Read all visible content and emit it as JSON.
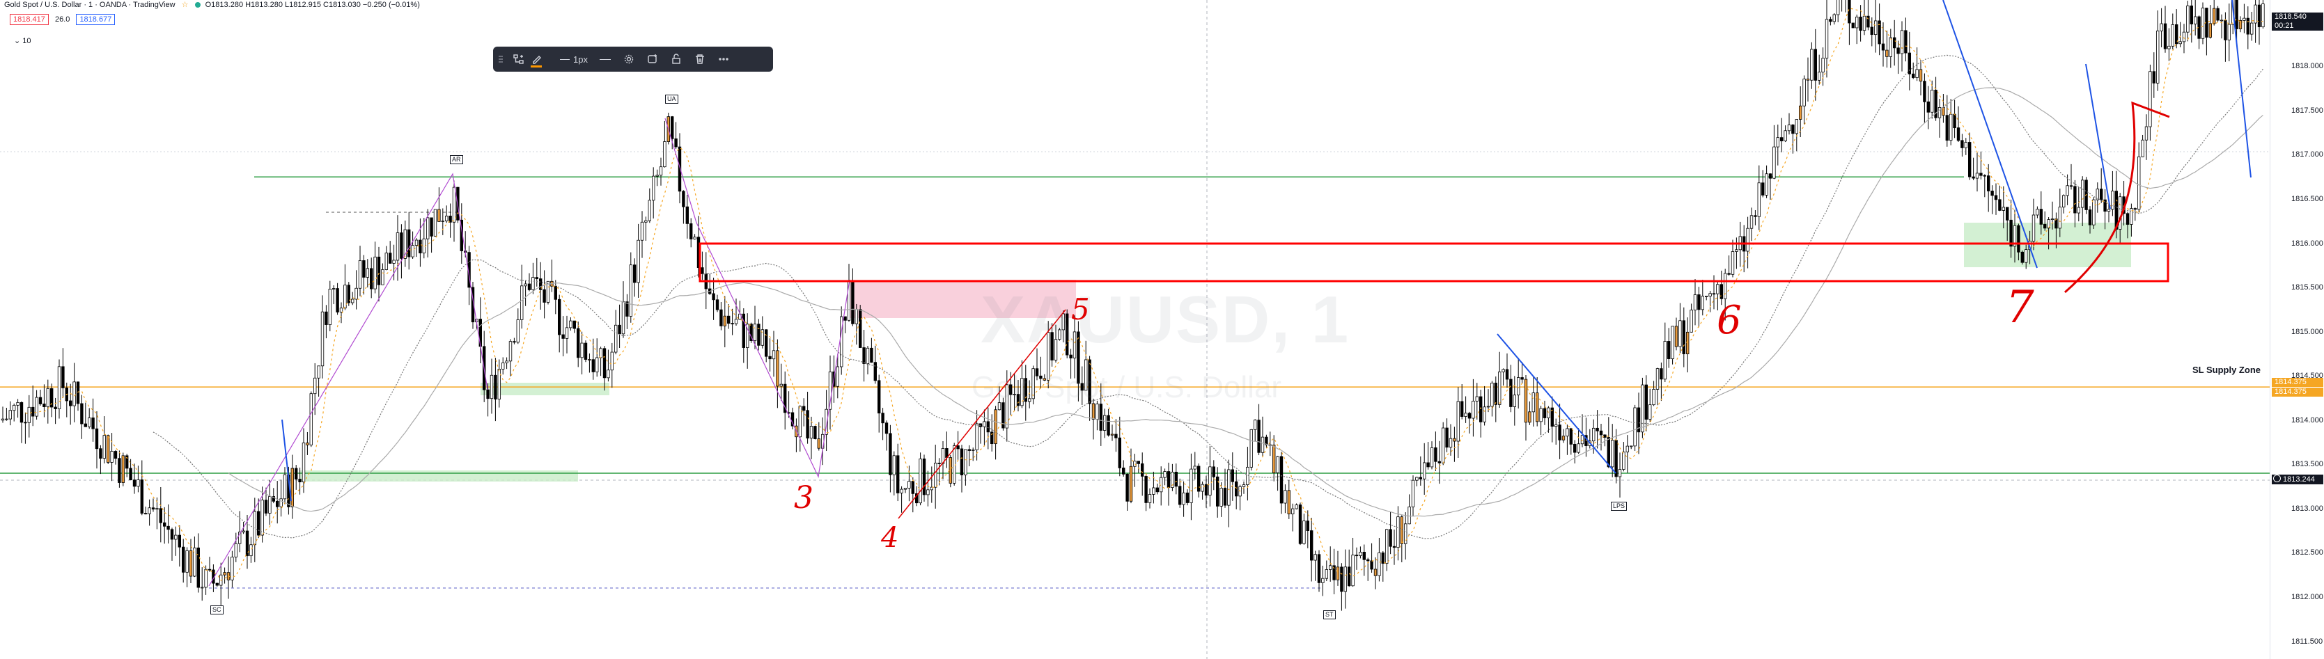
{
  "header": {
    "title": "Gold Spot / U.S. Dollar · 1 · OANDA · TradingView",
    "ohlc": "O1813.280 H1813.280 L1812.915 C1813.030 −0.250 (−0.01%)",
    "sell_price": "1818.417",
    "spread": "26.0",
    "buy_price": "1818.677",
    "indicator_toggle": "10"
  },
  "toolbar": {
    "line_width_label": "1px",
    "items": [
      "grip",
      "object-tree",
      "pencil-color",
      "line-color",
      "line-width",
      "line-style",
      "settings",
      "alert",
      "lock",
      "delete",
      "more"
    ]
  },
  "watermark": {
    "symbol": "XAUUSD, 1",
    "name": "Gold Spot / U.S. Dollar"
  },
  "price_axis": {
    "ticks": [
      "1818.000",
      "1817.500",
      "1817.000",
      "1816.500",
      "1816.000",
      "1815.500",
      "1815.000",
      "1814.500",
      "1814.000",
      "1813.500",
      "1813.000",
      "1812.500",
      "1812.000",
      "1811.500"
    ],
    "last_price": "1818.540",
    "countdown": "00:21",
    "zone_labels": [
      "1814.375",
      "1814.375"
    ],
    "cursor_price": "1813.244"
  },
  "annotations": {
    "sl_zone_label": "SL Supply Zone",
    "wyckoff_tags": [
      "AR",
      "UA",
      "SC",
      "ST",
      "LPS"
    ],
    "numbers": [
      "3",
      "4",
      "5",
      "6",
      "7"
    ]
  },
  "colors": {
    "up_candle": "#ffffff",
    "down_candle": "#000000",
    "accent_candle": "#e89a3c",
    "red_box": "#ff0000",
    "green_zone": "#c8ecc8",
    "pink_zone": "#f8c8d6",
    "orange_line": "#f5a623",
    "blue_line": "#1e53e5",
    "purple_line": "#b14bd1"
  },
  "chart_data": {
    "type": "candlestick",
    "price_range": [
      1811.3,
      1818.75
    ],
    "levels": {
      "resistance_green": 1816.75,
      "support_green": 1813.3,
      "sl_supply_zone": 1814.375,
      "ar_dashed": 1817.0
    },
    "seed": 7
  }
}
